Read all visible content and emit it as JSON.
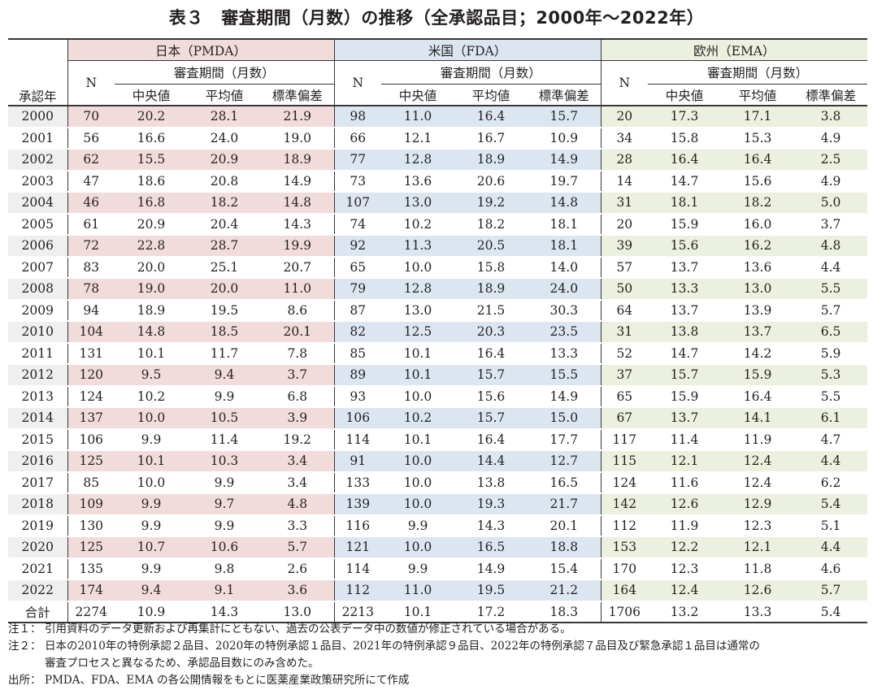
{
  "title": "表３　審査期間（月数）の推移（全承認品目；2000年～2022年）",
  "table": {
    "year_header": "承認年",
    "regions": [
      {
        "key": "jp",
        "label": "日本（PMDA）",
        "color": "#f2dcdb"
      },
      {
        "key": "us",
        "label": "米国（FDA）",
        "color": "#dce6f1"
      },
      {
        "key": "eu",
        "label": "欧州（EMA）",
        "color": "#ebf1de"
      }
    ],
    "n_label": "N",
    "period_label": "審査期間（月数）",
    "stat_labels": [
      "中央値",
      "平均値",
      "標準偏差"
    ],
    "rows": [
      {
        "year": "2000",
        "jp": [
          "70",
          "20.2",
          "28.1",
          "21.9"
        ],
        "us": [
          "98",
          "11.0",
          "16.4",
          "15.7"
        ],
        "eu": [
          "20",
          "17.3",
          "17.1",
          "3.8"
        ]
      },
      {
        "year": "2001",
        "jp": [
          "56",
          "16.6",
          "24.0",
          "19.0"
        ],
        "us": [
          "66",
          "12.1",
          "16.7",
          "10.9"
        ],
        "eu": [
          "34",
          "15.8",
          "15.3",
          "4.9"
        ]
      },
      {
        "year": "2002",
        "jp": [
          "62",
          "15.5",
          "20.9",
          "18.9"
        ],
        "us": [
          "77",
          "12.8",
          "18.9",
          "14.9"
        ],
        "eu": [
          "28",
          "16.4",
          "16.4",
          "2.5"
        ]
      },
      {
        "year": "2003",
        "jp": [
          "47",
          "18.6",
          "20.8",
          "14.9"
        ],
        "us": [
          "73",
          "13.6",
          "20.6",
          "19.7"
        ],
        "eu": [
          "14",
          "14.7",
          "15.6",
          "4.9"
        ]
      },
      {
        "year": "2004",
        "jp": [
          "46",
          "16.8",
          "18.2",
          "14.8"
        ],
        "us": [
          "107",
          "13.0",
          "19.2",
          "14.8"
        ],
        "eu": [
          "31",
          "18.1",
          "18.2",
          "5.0"
        ]
      },
      {
        "year": "2005",
        "jp": [
          "61",
          "20.9",
          "20.4",
          "14.3"
        ],
        "us": [
          "74",
          "10.2",
          "18.2",
          "18.1"
        ],
        "eu": [
          "20",
          "15.9",
          "16.0",
          "3.7"
        ]
      },
      {
        "year": "2006",
        "jp": [
          "72",
          "22.8",
          "28.7",
          "19.9"
        ],
        "us": [
          "92",
          "11.3",
          "20.5",
          "18.1"
        ],
        "eu": [
          "39",
          "15.6",
          "16.2",
          "4.8"
        ]
      },
      {
        "year": "2007",
        "jp": [
          "83",
          "20.0",
          "25.1",
          "20.7"
        ],
        "us": [
          "65",
          "10.0",
          "15.8",
          "14.0"
        ],
        "eu": [
          "57",
          "13.7",
          "13.6",
          "4.4"
        ]
      },
      {
        "year": "2008",
        "jp": [
          "78",
          "19.0",
          "20.0",
          "11.0"
        ],
        "us": [
          "79",
          "12.8",
          "18.9",
          "24.0"
        ],
        "eu": [
          "50",
          "13.3",
          "13.0",
          "5.5"
        ]
      },
      {
        "year": "2009",
        "jp": [
          "94",
          "18.9",
          "19.5",
          "8.6"
        ],
        "us": [
          "87",
          "13.0",
          "21.5",
          "30.3"
        ],
        "eu": [
          "64",
          "13.7",
          "13.9",
          "5.7"
        ]
      },
      {
        "year": "2010",
        "jp": [
          "104",
          "14.8",
          "18.5",
          "20.1"
        ],
        "us": [
          "82",
          "12.5",
          "20.3",
          "23.5"
        ],
        "eu": [
          "31",
          "13.8",
          "13.7",
          "6.5"
        ]
      },
      {
        "year": "2011",
        "jp": [
          "131",
          "10.1",
          "11.7",
          "7.8"
        ],
        "us": [
          "85",
          "10.1",
          "16.4",
          "13.3"
        ],
        "eu": [
          "52",
          "14.7",
          "14.2",
          "5.9"
        ]
      },
      {
        "year": "2012",
        "jp": [
          "120",
          "9.5",
          "9.4",
          "3.7"
        ],
        "us": [
          "89",
          "10.1",
          "15.7",
          "15.5"
        ],
        "eu": [
          "37",
          "15.7",
          "15.9",
          "5.3"
        ]
      },
      {
        "year": "2013",
        "jp": [
          "124",
          "10.2",
          "9.9",
          "6.8"
        ],
        "us": [
          "93",
          "10.0",
          "15.6",
          "14.9"
        ],
        "eu": [
          "65",
          "15.9",
          "16.4",
          "5.5"
        ]
      },
      {
        "year": "2014",
        "jp": [
          "137",
          "10.0",
          "10.5",
          "3.9"
        ],
        "us": [
          "106",
          "10.2",
          "15.7",
          "15.0"
        ],
        "eu": [
          "67",
          "13.7",
          "14.1",
          "6.1"
        ]
      },
      {
        "year": "2015",
        "jp": [
          "106",
          "9.9",
          "11.4",
          "19.2"
        ],
        "us": [
          "114",
          "10.1",
          "16.4",
          "17.7"
        ],
        "eu": [
          "117",
          "11.4",
          "11.9",
          "4.7"
        ]
      },
      {
        "year": "2016",
        "jp": [
          "125",
          "10.1",
          "10.3",
          "3.4"
        ],
        "us": [
          "91",
          "10.0",
          "14.4",
          "12.7"
        ],
        "eu": [
          "115",
          "12.1",
          "12.4",
          "4.4"
        ]
      },
      {
        "year": "2017",
        "jp": [
          "85",
          "10.0",
          "9.9",
          "3.4"
        ],
        "us": [
          "133",
          "10.0",
          "13.8",
          "16.5"
        ],
        "eu": [
          "124",
          "11.6",
          "12.4",
          "6.2"
        ]
      },
      {
        "year": "2018",
        "jp": [
          "109",
          "9.9",
          "9.7",
          "4.8"
        ],
        "us": [
          "139",
          "10.0",
          "19.3",
          "21.7"
        ],
        "eu": [
          "142",
          "12.6",
          "12.9",
          "5.4"
        ]
      },
      {
        "year": "2019",
        "jp": [
          "130",
          "9.9",
          "9.9",
          "3.3"
        ],
        "us": [
          "116",
          "9.9",
          "14.3",
          "20.1"
        ],
        "eu": [
          "112",
          "11.9",
          "12.3",
          "5.1"
        ]
      },
      {
        "year": "2020",
        "jp": [
          "125",
          "10.7",
          "10.6",
          "5.7"
        ],
        "us": [
          "121",
          "10.0",
          "16.5",
          "18.8"
        ],
        "eu": [
          "153",
          "12.2",
          "12.1",
          "4.4"
        ]
      },
      {
        "year": "2021",
        "jp": [
          "135",
          "9.9",
          "9.8",
          "2.6"
        ],
        "us": [
          "114",
          "9.9",
          "14.9",
          "15.4"
        ],
        "eu": [
          "170",
          "12.3",
          "11.8",
          "4.6"
        ]
      },
      {
        "year": "2022",
        "jp": [
          "174",
          "9.4",
          "9.1",
          "3.6"
        ],
        "us": [
          "112",
          "11.0",
          "19.5",
          "21.2"
        ],
        "eu": [
          "164",
          "12.4",
          "12.6",
          "5.7"
        ]
      }
    ],
    "total": {
      "year": "合計",
      "jp": [
        "2274",
        "10.9",
        "14.3",
        "13.0"
      ],
      "us": [
        "2213",
        "10.1",
        "17.2",
        "18.3"
      ],
      "eu": [
        "1706",
        "13.2",
        "13.3",
        "5.4"
      ]
    }
  },
  "notes": [
    {
      "label": "注１：",
      "lines": [
        "引用資料のデータ更新および再集計にともない、過去の公表データ中の数値が修正されている場合がある。"
      ]
    },
    {
      "label": "注２：",
      "lines": [
        "日本の2010年の特例承認２品目、2020年の特例承認１品目、2021年の特例承認９品目、2022年の特例承認７品目及び緊急承認１品目は通常の",
        "審査プロセスと異なるため、承認品目数にのみ含めた。"
      ]
    },
    {
      "label": "出所：",
      "lines": [
        "PMDA、FDA、EMA の各公開情報をもとに医薬産業政策研究所にて作成"
      ]
    }
  ]
}
